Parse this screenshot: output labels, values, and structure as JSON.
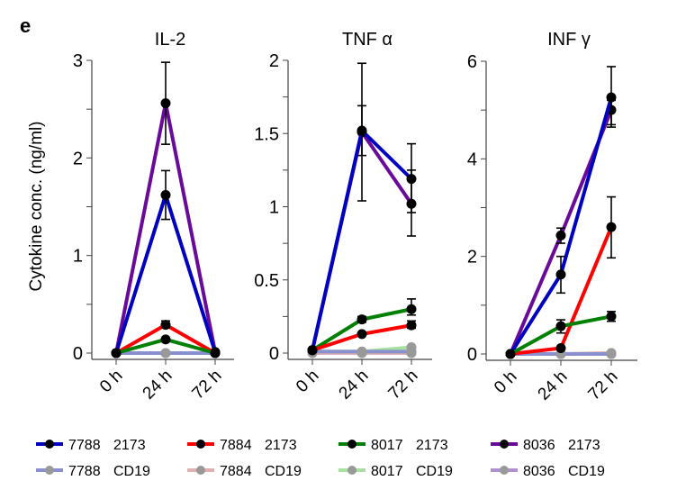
{
  "panel_label": "e",
  "chart_data": [
    {
      "type": "line",
      "title": "IL-2",
      "ylabel": "Cytokine conc. (ng/ml)",
      "categories": [
        "0 h",
        "24 h",
        "72 h"
      ],
      "ylim": [
        0,
        3
      ],
      "yticks": [
        0,
        1,
        2,
        3
      ],
      "yticklabels": [
        "0",
        "1",
        "2",
        "3"
      ],
      "series": [
        {
          "name": "8036 2173",
          "color": "#6a0a9a",
          "values": [
            0,
            2.56,
            0.01
          ],
          "err_low": [
            0,
            2.14,
            0
          ],
          "err_high": [
            0,
            2.98,
            0.02
          ]
        },
        {
          "name": "7788 2173",
          "color": "#0000c0",
          "values": [
            0,
            1.62,
            0.01
          ],
          "err_low": [
            0,
            1.37,
            0
          ],
          "err_high": [
            0,
            1.87,
            0.02
          ]
        },
        {
          "name": "7884 2173",
          "color": "#ff0000",
          "values": [
            0,
            0.29,
            0
          ],
          "err_low": [
            0,
            0.26,
            0
          ],
          "err_high": [
            0,
            0.33,
            0
          ]
        },
        {
          "name": "8017 2173",
          "color": "#008000",
          "values": [
            0,
            0.14,
            0
          ],
          "err_low": [
            0,
            0.13,
            0
          ],
          "err_high": [
            0,
            0.15,
            0
          ]
        },
        {
          "name": "8036 CD19",
          "color": "#b090d0",
          "values": [
            0,
            0,
            0
          ]
        },
        {
          "name": "8017 CD19",
          "color": "#a8e0a0",
          "values": [
            0,
            0,
            0
          ]
        },
        {
          "name": "7884 CD19",
          "color": "#e0b0b0",
          "values": [
            0,
            0,
            0
          ]
        },
        {
          "name": "7788 CD19",
          "color": "#8890d0",
          "values": [
            0,
            0,
            0
          ]
        }
      ]
    },
    {
      "type": "line",
      "title": "TNF α",
      "categories": [
        "0 h",
        "24 h",
        "72 h"
      ],
      "ylim": [
        0,
        2
      ],
      "yticks": [
        0,
        0.5,
        1,
        1.5,
        2
      ],
      "yticklabels": [
        "0",
        "0.5",
        "1",
        "1.5",
        "2"
      ],
      "series": [
        {
          "name": "8036 2173",
          "color": "#6a0a9a",
          "values": [
            0.02,
            1.51,
            1.02
          ],
          "err_low": [
            0.02,
            1.35,
            0.8
          ],
          "err_high": [
            0.02,
            1.69,
            1.25
          ]
        },
        {
          "name": "7788 2173",
          "color": "#0000c0",
          "values": [
            0.02,
            1.52,
            1.19
          ],
          "err_low": [
            0.02,
            1.04,
            0.96
          ],
          "err_high": [
            0.02,
            1.98,
            1.43
          ]
        },
        {
          "name": "8017 2173",
          "color": "#008000",
          "values": [
            0.02,
            0.23,
            0.3
          ],
          "err_low": [
            0.02,
            0.21,
            0.26
          ],
          "err_high": [
            0.02,
            0.25,
            0.37
          ]
        },
        {
          "name": "7884 2173",
          "color": "#ff0000",
          "values": [
            0.02,
            0.13,
            0.19
          ],
          "err_low": [
            0.02,
            0.12,
            0.17
          ],
          "err_high": [
            0.02,
            0.14,
            0.22
          ]
        },
        {
          "name": "8036 CD19",
          "color": "#b090d0",
          "values": [
            0.01,
            0.01,
            0.01
          ]
        },
        {
          "name": "8017 CD19",
          "color": "#a8e0a0",
          "values": [
            0.01,
            0.01,
            0.04
          ]
        },
        {
          "name": "7884 CD19",
          "color": "#e0b0b0",
          "values": [
            0,
            0,
            0
          ]
        },
        {
          "name": "7788 CD19",
          "color": "#8890d0",
          "values": [
            0.01,
            0.01,
            0.01
          ]
        }
      ]
    },
    {
      "type": "line",
      "title": "INF γ",
      "categories": [
        "0 h",
        "24 h",
        "72 h"
      ],
      "ylim": [
        0,
        6
      ],
      "yticks": [
        0,
        2,
        4,
        6
      ],
      "yticklabels": [
        "0",
        "2",
        "4",
        "6"
      ],
      "series": [
        {
          "name": "8036 2173",
          "color": "#6a0a9a",
          "values": [
            0,
            2.43,
            5.0
          ],
          "err_low": [
            0,
            2.27,
            4.65
          ],
          "err_high": [
            0,
            2.58,
            5.2
          ]
        },
        {
          "name": "7788 2173",
          "color": "#0000c0",
          "values": [
            0,
            1.63,
            5.26
          ],
          "err_low": [
            0,
            1.25,
            4.7
          ],
          "err_high": [
            0,
            2.0,
            5.89
          ]
        },
        {
          "name": "7884 2173",
          "color": "#ff0000",
          "values": [
            0,
            0.12,
            2.6
          ],
          "err_low": [
            0,
            0.11,
            1.97
          ],
          "err_high": [
            0,
            0.13,
            3.22
          ]
        },
        {
          "name": "8017 2173",
          "color": "#008000",
          "values": [
            0,
            0.57,
            0.77
          ],
          "err_low": [
            0,
            0.43,
            0.67
          ],
          "err_high": [
            0,
            0.7,
            0.87
          ]
        },
        {
          "name": "8036 CD19",
          "color": "#b090d0",
          "values": [
            0,
            0,
            0
          ]
        },
        {
          "name": "8017 CD19",
          "color": "#a8e0a0",
          "values": [
            0,
            0,
            0
          ]
        },
        {
          "name": "7884 CD19",
          "color": "#e0b0b0",
          "values": [
            0,
            0,
            0.02
          ]
        },
        {
          "name": "7788 CD19",
          "color": "#8890d0",
          "values": [
            0,
            0,
            0
          ]
        }
      ]
    }
  ],
  "legend": {
    "placement": "bottom",
    "items": [
      {
        "id": "7788",
        "group": "2173",
        "color": "#0000c0",
        "marker": "#000000"
      },
      {
        "id": "7884",
        "group": "2173",
        "color": "#ff0000",
        "marker": "#000000"
      },
      {
        "id": "8017",
        "group": "2173",
        "color": "#008000",
        "marker": "#000000"
      },
      {
        "id": "8036",
        "group": "2173",
        "color": "#6a0a9a",
        "marker": "#000000"
      },
      {
        "id": "7788",
        "group": "CD19",
        "color": "#8890d0",
        "marker": "#999999"
      },
      {
        "id": "7884",
        "group": "CD19",
        "color": "#e0b0b0",
        "marker": "#999999"
      },
      {
        "id": "8017",
        "group": "CD19",
        "color": "#a8e0a0",
        "marker": "#999999"
      },
      {
        "id": "8036",
        "group": "CD19",
        "color": "#b090d0",
        "marker": "#999999"
      }
    ]
  }
}
